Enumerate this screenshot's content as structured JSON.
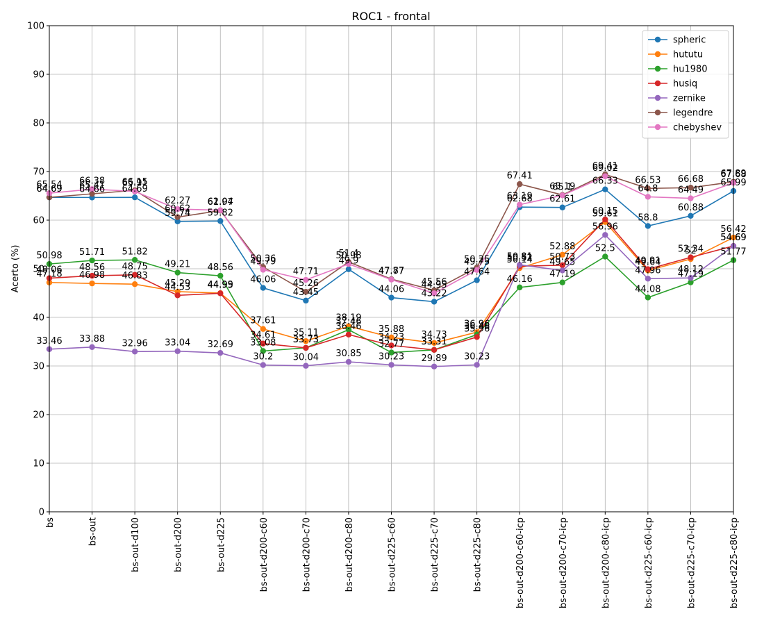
{
  "chart_data": {
    "type": "line",
    "title": "ROC1 - frontal",
    "xlabel": "",
    "ylabel": "Acerto (%)",
    "ylim": [
      0,
      100
    ],
    "yticks": [
      0,
      10,
      20,
      30,
      40,
      50,
      60,
      70,
      80,
      90,
      100
    ],
    "grid": true,
    "legend_position": "top-right",
    "categories": [
      "bs",
      "bs-out",
      "bs-out-d100",
      "bs-out-d200",
      "bs-out-d225",
      "bs-out-d200-c60",
      "bs-out-d200-c70",
      "bs-out-d200-c80",
      "bs-out-d225-c60",
      "bs-out-d225-c70",
      "bs-out-d225-c80",
      "bs-out-d200-c60-icp",
      "bs-out-d200-c70-icp",
      "bs-out-d200-c80-icp",
      "bs-out-d225-c60-icp",
      "bs-out-d225-c70-icp",
      "bs-out-d225-c80-icp"
    ],
    "series": [
      {
        "name": "spheric",
        "color": "#1f77b4",
        "values": [
          64.69,
          64.66,
          64.69,
          59.74,
          59.82,
          46.06,
          43.45,
          49.9,
          44.06,
          43.22,
          47.64,
          62.68,
          62.61,
          66.33,
          58.8,
          60.88,
          65.99
        ]
      },
      {
        "name": "hututu",
        "color": "#ff7f0e",
        "values": [
          47.18,
          46.98,
          46.83,
          45.29,
          44.99,
          37.61,
          35.11,
          38.19,
          35.88,
          34.73,
          36.96,
          50.14,
          52.88,
          59.61,
          49.64,
          52.0,
          56.42
        ]
      },
      {
        "name": "hu1980",
        "color": "#2ca02c",
        "values": [
          50.98,
          51.71,
          51.82,
          49.21,
          48.56,
          33.08,
          33.73,
          37.46,
          32.77,
          33.31,
          36.46,
          46.16,
          47.19,
          52.5,
          44.08,
          47.19,
          51.77
        ]
      },
      {
        "name": "husiq",
        "color": "#d62728",
        "values": [
          48.06,
          48.56,
          48.75,
          44.53,
          44.95,
          34.61,
          33.73,
          36.46,
          34.23,
          33.31,
          35.96,
          50.52,
          50.73,
          60.15,
          49.91,
          52.34,
          54.69
        ]
      },
      {
        "name": "zernike",
        "color": "#9467bd",
        "values": [
          33.46,
          33.88,
          32.96,
          33.04,
          32.69,
          30.2,
          30.04,
          30.85,
          30.23,
          29.89,
          30.23,
          50.81,
          49.65,
          56.96,
          47.96,
          48.12,
          54.69
        ]
      },
      {
        "name": "legendre",
        "color": "#8c564b",
        "values": [
          64.69,
          65.41,
          66.15,
          60.62,
          61.97,
          50.36,
          45.26,
          51.4,
          47.87,
          45.56,
          50.25,
          67.41,
          65.19,
          69.41,
          66.53,
          66.68,
          67.89
        ]
      },
      {
        "name": "chebyshev",
        "color": "#e377c2",
        "values": [
          65.54,
          66.38,
          65.91,
          62.27,
          62.04,
          49.79,
          47.71,
          50.98,
          47.77,
          44.95,
          49.75,
          63.19,
          65.1,
          69.02,
          64.8,
          64.49,
          67.68
        ]
      }
    ],
    "data_labels": true
  }
}
